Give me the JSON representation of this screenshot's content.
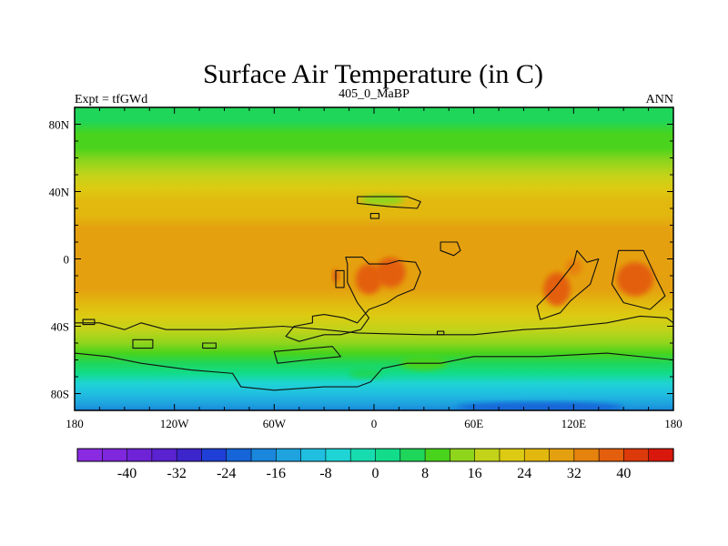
{
  "title": "Surface Air Temperature (in C)",
  "left_label": "Expt = tfGWd",
  "center_label": "405_0_MaBP",
  "right_label": "ANN",
  "colors": {
    "frame": "#000000",
    "background": "#ffffff"
  },
  "chart_data": {
    "type": "heatmap",
    "map_type": "filled contour map",
    "xlim": [
      -180,
      180
    ],
    "ylim": [
      -90,
      90
    ],
    "x_ticks": [
      {
        "value": -180,
        "label": "180"
      },
      {
        "value": -120,
        "label": "120W"
      },
      {
        "value": -60,
        "label": "60W"
      },
      {
        "value": 0,
        "label": "0"
      },
      {
        "value": 60,
        "label": "60E"
      },
      {
        "value": 120,
        "label": "120E"
      },
      {
        "value": 180,
        "label": "180"
      }
    ],
    "y_ticks": [
      {
        "value": 80,
        "label": "80N"
      },
      {
        "value": 40,
        "label": "40N"
      },
      {
        "value": 0,
        "label": "0"
      },
      {
        "value": -40,
        "label": "40S"
      },
      {
        "value": -80,
        "label": "80S"
      }
    ],
    "zonal_mean_temperature": [
      {
        "lat": 90,
        "t": 6
      },
      {
        "lat": 82,
        "t": 7
      },
      {
        "lat": 74,
        "t": 9
      },
      {
        "lat": 66,
        "t": 11
      },
      {
        "lat": 58,
        "t": 14
      },
      {
        "lat": 50,
        "t": 17
      },
      {
        "lat": 42,
        "t": 21
      },
      {
        "lat": 34,
        "t": 24
      },
      {
        "lat": 26,
        "t": 27
      },
      {
        "lat": 18,
        "t": 29
      },
      {
        "lat": 10,
        "t": 30
      },
      {
        "lat": 0,
        "t": 30
      },
      {
        "lat": -10,
        "t": 29
      },
      {
        "lat": -18,
        "t": 28
      },
      {
        "lat": -26,
        "t": 26
      },
      {
        "lat": -34,
        "t": 23
      },
      {
        "lat": -42,
        "t": 19
      },
      {
        "lat": -50,
        "t": 15
      },
      {
        "lat": -56,
        "t": 11
      },
      {
        "lat": -62,
        "t": 6
      },
      {
        "lat": -68,
        "t": 1
      },
      {
        "lat": -74,
        "t": -5
      },
      {
        "lat": -80,
        "t": -11
      },
      {
        "lat": -86,
        "t": -16
      },
      {
        "lat": -90,
        "t": -18
      }
    ],
    "colorbar": {
      "levels": [
        -44,
        -40,
        -36,
        -32,
        -28,
        -24,
        -20,
        -16,
        -12,
        -8,
        -4,
        0,
        4,
        8,
        12,
        16,
        20,
        24,
        28,
        32,
        36,
        40,
        44
      ],
      "colors": [
        "#8a2be2",
        "#7e27dc",
        "#6e24d6",
        "#5a22d0",
        "#3d25cc",
        "#1f3fd6",
        "#1565d8",
        "#1a86dc",
        "#1ea3df",
        "#20bfe0",
        "#1fd4d4",
        "#17dcb0",
        "#12dc8a",
        "#1fd65a",
        "#49d31c",
        "#8fd51c",
        "#c2d31a",
        "#dccb12",
        "#e2b80f",
        "#e5a00f",
        "#e6820e",
        "#e35f0d",
        "#dd3a0c",
        "#d8180c"
      ],
      "labels": [
        {
          "value": -40,
          "label": "-40"
        },
        {
          "value": -32,
          "label": "-32"
        },
        {
          "value": -24,
          "label": "-24"
        },
        {
          "value": -16,
          "label": "-16"
        },
        {
          "value": -8,
          "label": "-8"
        },
        {
          "value": 0,
          "label": "0"
        },
        {
          "value": 8,
          "label": "8"
        },
        {
          "value": 16,
          "label": "16"
        },
        {
          "value": 24,
          "label": "24"
        },
        {
          "value": 32,
          "label": "32"
        },
        {
          "value": 40,
          "label": "40"
        }
      ]
    },
    "warm_spots_over_land": [
      {
        "lon": -3,
        "lat": -12,
        "rx": 8,
        "ry": 9,
        "t": 37
      },
      {
        "lon": 10,
        "lat": -8,
        "rx": 9,
        "ry": 9,
        "t": 37
      },
      {
        "lon": -23,
        "lat": -10,
        "rx": 2,
        "ry": 4,
        "t": 37
      },
      {
        "lon": 110,
        "lat": -18,
        "rx": 8,
        "ry": 10,
        "t": 37
      },
      {
        "lon": 120,
        "lat": -5,
        "rx": 5,
        "ry": 5,
        "t": 35
      },
      {
        "lon": 157,
        "lat": -12,
        "rx": 11,
        "ry": 10,
        "t": 37
      }
    ],
    "cool_spots": [
      {
        "lon": 5,
        "lat": 35,
        "rx": 13,
        "ry": 3,
        "t": 13
      },
      {
        "lon": 30,
        "lat": -62,
        "rx": 14,
        "ry": 4,
        "t": 9
      },
      {
        "lon": -5,
        "lat": -68,
        "rx": 10,
        "ry": 3,
        "t": 5
      },
      {
        "lon": 100,
        "lat": -88,
        "rx": 50,
        "ry": 3,
        "t": -22
      }
    ],
    "continent_outlines": [
      [
        [
          -10,
          37
        ],
        [
          20,
          37
        ],
        [
          28,
          34
        ],
        [
          26,
          30
        ],
        [
          10,
          31
        ],
        [
          -10,
          33
        ]
      ],
      [
        [
          -2,
          27
        ],
        [
          3,
          27
        ],
        [
          3,
          24
        ],
        [
          -2,
          24
        ]
      ],
      [
        [
          40,
          10
        ],
        [
          50,
          10
        ],
        [
          52,
          5
        ],
        [
          48,
          2
        ],
        [
          40,
          5
        ]
      ],
      [
        [
          -23,
          -7
        ],
        [
          -18,
          -7
        ],
        [
          -18,
          -17
        ],
        [
          -23,
          -17
        ]
      ],
      [
        [
          -17,
          1
        ],
        [
          -7,
          1
        ],
        [
          -3,
          -3
        ],
        [
          8,
          -3
        ],
        [
          15,
          -1
        ],
        [
          25,
          -2
        ],
        [
          28,
          -8
        ],
        [
          24,
          -18
        ],
        [
          14,
          -22
        ],
        [
          8,
          -26
        ],
        [
          -3,
          -30
        ],
        [
          -10,
          -38
        ],
        [
          -18,
          -35
        ],
        [
          -30,
          -33
        ],
        [
          -37,
          -34
        ],
        [
          -37,
          -38
        ],
        [
          -48,
          -40
        ],
        [
          -53,
          -46
        ],
        [
          -45,
          -49
        ],
        [
          -30,
          -45
        ],
        [
          -20,
          -45
        ],
        [
          -8,
          -42
        ],
        [
          -3,
          -35
        ],
        [
          -10,
          -26
        ],
        [
          -16,
          -14
        ],
        [
          -16,
          -3
        ]
      ],
      [
        [
          108,
          -18
        ],
        [
          120,
          -3
        ],
        [
          122,
          5
        ],
        [
          128,
          -2
        ],
        [
          135,
          0
        ],
        [
          130,
          -15
        ],
        [
          118,
          -25
        ],
        [
          112,
          -32
        ],
        [
          100,
          -36
        ],
        [
          98,
          -28
        ]
      ],
      [
        [
          147,
          5
        ],
        [
          162,
          5
        ],
        [
          170,
          -12
        ],
        [
          175,
          -22
        ],
        [
          166,
          -30
        ],
        [
          150,
          -26
        ],
        [
          143,
          -15
        ],
        [
          145,
          -5
        ]
      ],
      [
        [
          -180,
          -38
        ],
        [
          -165,
          -38
        ],
        [
          -150,
          -42
        ],
        [
          -140,
          -38
        ],
        [
          -125,
          -42
        ],
        [
          -90,
          -42
        ],
        [
          -55,
          -40
        ],
        [
          -30,
          -42
        ],
        [
          -10,
          -44
        ],
        [
          30,
          -45
        ],
        [
          60,
          -45
        ],
        [
          90,
          -42
        ],
        [
          110,
          -41
        ],
        [
          140,
          -38
        ],
        [
          160,
          -34
        ],
        [
          176,
          -35
        ],
        [
          180,
          -38
        ],
        [
          180,
          -60
        ],
        [
          140,
          -56
        ],
        [
          100,
          -58
        ],
        [
          60,
          -58
        ],
        [
          40,
          -62
        ],
        [
          20,
          -62
        ],
        [
          5,
          -65
        ],
        [
          -2,
          -73
        ],
        [
          -10,
          -76
        ],
        [
          -30,
          -76
        ],
        [
          -60,
          -78
        ],
        [
          -80,
          -76
        ],
        [
          -85,
          -68
        ],
        [
          -110,
          -66
        ],
        [
          -125,
          -64
        ],
        [
          -140,
          -62
        ],
        [
          -160,
          -58
        ],
        [
          -180,
          -56
        ]
      ],
      [
        [
          -60,
          -55
        ],
        [
          -25,
          -52
        ],
        [
          -20,
          -58
        ],
        [
          -40,
          -60
        ],
        [
          -58,
          -62
        ]
      ],
      [
        [
          -145,
          -48
        ],
        [
          -133,
          -48
        ],
        [
          -133,
          -53
        ],
        [
          -145,
          -53
        ]
      ],
      [
        [
          -175,
          -36
        ],
        [
          -168,
          -36
        ],
        [
          -168,
          -39
        ],
        [
          -175,
          -39
        ]
      ],
      [
        [
          -103,
          -50
        ],
        [
          -95,
          -50
        ],
        [
          -95,
          -53
        ],
        [
          -103,
          -53
        ]
      ],
      [
        [
          38,
          -43
        ],
        [
          42,
          -43
        ],
        [
          42,
          -45
        ],
        [
          38,
          -45
        ]
      ]
    ]
  }
}
